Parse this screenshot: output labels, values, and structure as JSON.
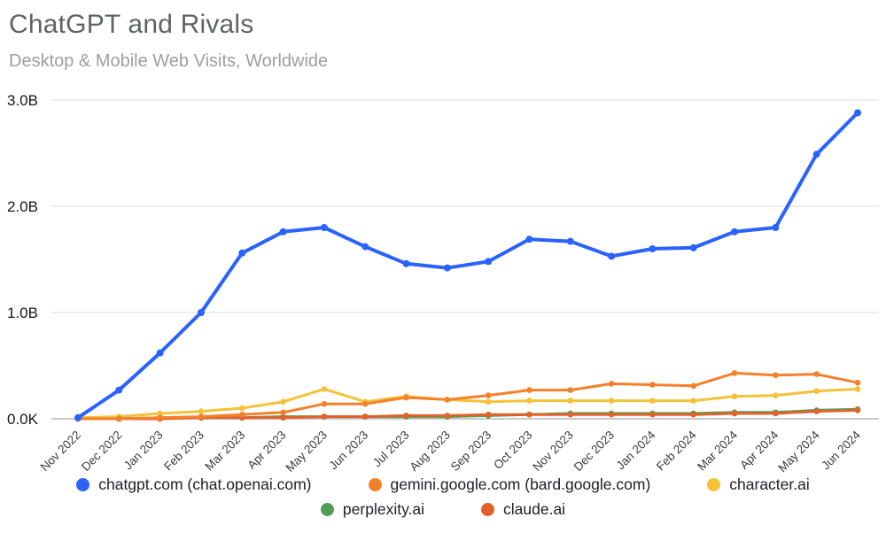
{
  "header": {
    "title": "ChatGPT and Rivals",
    "subtitle": "Desktop & Mobile Web Visits, Worldwide"
  },
  "chart_data": {
    "type": "line",
    "title": "ChatGPT and Rivals",
    "subtitle": "Desktop & Mobile Web Visits, Worldwide",
    "unit": "billions of visits",
    "grid": "horizontal",
    "legend_position": "bottom",
    "ylim": [
      0,
      3
    ],
    "y_ticks": [
      {
        "value": 0,
        "label": "0.0K"
      },
      {
        "value": 1,
        "label": "1.0B"
      },
      {
        "value": 2,
        "label": "2.0B"
      },
      {
        "value": 3,
        "label": "3.0B"
      }
    ],
    "categories": [
      "Nov 2022",
      "Dec 2022",
      "Jan 2023",
      "Feb 2023",
      "Mar 2023",
      "Apr 2023",
      "May 2023",
      "Jun 2023",
      "Jul 2023",
      "Aug 2023",
      "Sep 2023",
      "Oct 2023",
      "Nov 2023",
      "Dec 2023",
      "Jan 2024",
      "Feb 2024",
      "Mar 2024",
      "Apr 2024",
      "May 2024",
      "Jun 2024"
    ],
    "series": [
      {
        "key": "chatgpt",
        "name": "chatgpt.com (chat.openai.com)",
        "color": "#2962ff",
        "values": [
          0.01,
          0.27,
          0.62,
          1.0,
          1.56,
          1.76,
          1.8,
          1.62,
          1.46,
          1.42,
          1.48,
          1.69,
          1.67,
          1.53,
          1.6,
          1.61,
          1.76,
          1.8,
          2.49,
          2.88
        ]
      },
      {
        "key": "gemini",
        "name": "gemini.google.com (bard.google.com)",
        "color": "#f4802c",
        "values": [
          0,
          0,
          0.01,
          0.02,
          0.04,
          0.06,
          0.14,
          0.14,
          0.2,
          0.18,
          0.22,
          0.27,
          0.27,
          0.33,
          0.32,
          0.31,
          0.43,
          0.41,
          0.42,
          0.34
        ]
      },
      {
        "key": "character",
        "name": "character.ai",
        "color": "#f3c237",
        "values": [
          0.01,
          0.02,
          0.05,
          0.07,
          0.1,
          0.16,
          0.28,
          0.16,
          0.21,
          0.18,
          0.16,
          0.17,
          0.17,
          0.17,
          0.17,
          0.17,
          0.21,
          0.22,
          0.26,
          0.28
        ]
      },
      {
        "key": "perplexity",
        "name": "perplexity.ai",
        "color": "#509e52",
        "values": [
          0,
          0,
          0.01,
          0.01,
          0.01,
          0.02,
          0.02,
          0.02,
          0.02,
          0.02,
          0.03,
          0.04,
          0.05,
          0.05,
          0.05,
          0.05,
          0.06,
          0.06,
          0.08,
          0.09
        ]
      },
      {
        "key": "claude",
        "name": "claude.ai",
        "color": "#e2622b",
        "values": [
          0,
          0,
          0,
          0.01,
          0.01,
          0.01,
          0.02,
          0.02,
          0.03,
          0.03,
          0.04,
          0.04,
          0.04,
          0.04,
          0.04,
          0.04,
          0.05,
          0.05,
          0.07,
          0.08
        ]
      }
    ],
    "legend_rows": [
      [
        0,
        1,
        2
      ],
      [
        3,
        4
      ]
    ]
  }
}
